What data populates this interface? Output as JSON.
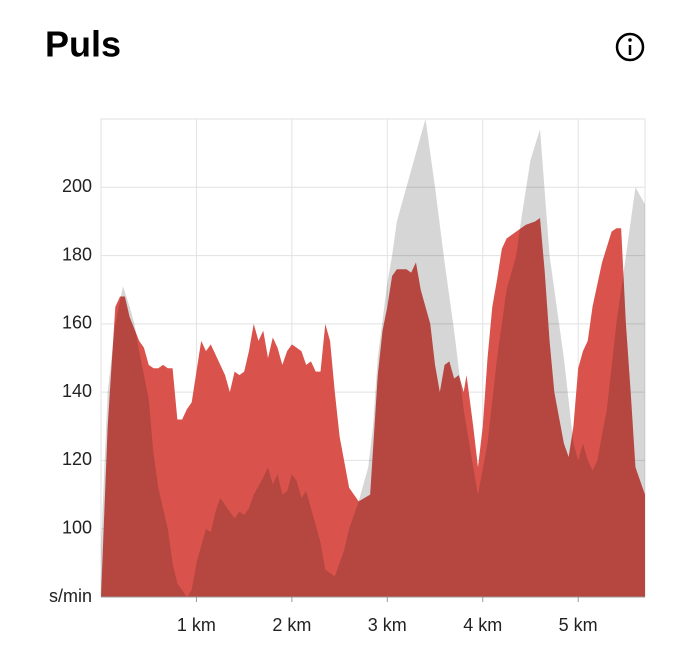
{
  "chart_data": {
    "type": "area",
    "title": "Puls",
    "xlim": [
      0,
      5.7
    ],
    "ylim": [
      80,
      220
    ],
    "xticks": [
      {
        "value": 1,
        "label": "1 km"
      },
      {
        "value": 2,
        "label": "2 km"
      },
      {
        "value": 3,
        "label": "3 km"
      },
      {
        "value": 4,
        "label": "4 km"
      },
      {
        "value": 5,
        "label": "5 km"
      }
    ],
    "yticks": [
      {
        "value": 80,
        "label": "s/min"
      },
      100,
      120,
      140,
      160,
      180,
      200
    ],
    "grid": true,
    "series": [
      {
        "color": "#d9534c",
        "x": [
          0,
          0.07,
          0.15,
          0.2,
          0.25,
          0.3,
          0.4,
          0.45,
          0.5,
          0.55,
          0.6,
          0.65,
          0.7,
          0.75,
          0.8,
          0.85,
          0.9,
          0.95,
          1.0,
          1.05,
          1.1,
          1.15,
          1.25,
          1.3,
          1.35,
          1.4,
          1.45,
          1.5,
          1.55,
          1.6,
          1.65,
          1.7,
          1.75,
          1.8,
          1.85,
          1.9,
          1.95,
          2.0,
          2.05,
          2.1,
          2.15,
          2.2,
          2.25,
          2.3,
          2.35,
          2.4,
          2.45,
          2.5,
          2.6,
          2.7,
          2.82,
          2.9,
          2.95,
          3.0,
          3.05,
          3.1,
          3.2,
          3.25,
          3.3,
          3.35,
          3.45,
          3.5,
          3.55,
          3.6,
          3.65,
          3.7,
          3.75,
          3.8,
          3.83,
          3.9,
          3.95,
          4.0,
          4.05,
          4.1,
          4.15,
          4.2,
          4.25,
          4.35,
          4.45,
          4.55,
          4.6,
          4.65,
          4.7,
          4.75,
          4.85,
          4.9,
          4.95,
          5.0,
          5.05,
          5.1,
          5.15,
          5.25,
          5.35,
          5.4,
          5.45,
          5.5,
          5.55,
          5.6,
          5.7
        ],
        "values": [
          80,
          130,
          165,
          168,
          168,
          162,
          155,
          153,
          148,
          147,
          147,
          148,
          147,
          147,
          132,
          132,
          135,
          137,
          146,
          155,
          152,
          154,
          148,
          145,
          140,
          146,
          145,
          146,
          152,
          160,
          155,
          158,
          150,
          156,
          153,
          148,
          152,
          154,
          153,
          152,
          148,
          149,
          146,
          146,
          160,
          155,
          140,
          127,
          112,
          108,
          110,
          145,
          158,
          165,
          174,
          176,
          176,
          175,
          178,
          170,
          160,
          148,
          140,
          148,
          149,
          144,
          145,
          140,
          145,
          130,
          118,
          130,
          150,
          165,
          173,
          182,
          185,
          187,
          189,
          190,
          191,
          175,
          155,
          140,
          125,
          121,
          130,
          147,
          152,
          155,
          165,
          178,
          187,
          188,
          188,
          160,
          140,
          118,
          110
        ]
      },
      {
        "color": "#d6d6d6",
        "x": [
          0,
          0.07,
          0.15,
          0.23,
          0.3,
          0.35,
          0.4,
          0.5,
          0.55,
          0.6,
          0.7,
          0.75,
          0.8,
          0.9,
          0.95,
          1.0,
          1.1,
          1.15,
          1.2,
          1.25,
          1.3,
          1.4,
          1.45,
          1.5,
          1.55,
          1.6,
          1.7,
          1.75,
          1.8,
          1.85,
          1.9,
          1.95,
          2.0,
          2.05,
          2.1,
          2.15,
          2.2,
          2.3,
          2.35,
          2.45,
          2.55,
          2.6,
          2.7,
          2.8,
          2.85,
          2.9,
          3.0,
          3.05,
          3.1,
          3.2,
          3.3,
          3.4,
          3.5,
          3.6,
          3.7,
          3.8,
          3.9,
          3.95,
          4.05,
          4.15,
          4.25,
          4.35,
          4.4,
          4.5,
          4.6,
          4.7,
          4.85,
          4.95,
          5.0,
          5.05,
          5.1,
          5.15,
          5.2,
          5.3,
          5.4,
          5.5,
          5.6,
          5.7
        ],
        "values": [
          95,
          140,
          160,
          171,
          165,
          160,
          152,
          138,
          122,
          112,
          100,
          90,
          84,
          80,
          82,
          90,
          100,
          99,
          105,
          109,
          107,
          103,
          105,
          104,
          106,
          110,
          115,
          118,
          113,
          116,
          110,
          111,
          116,
          114,
          109,
          111,
          106,
          96,
          88,
          86,
          94,
          100,
          108,
          118,
          130,
          150,
          172,
          180,
          190,
          200,
          210,
          220,
          200,
          178,
          158,
          135,
          118,
          110,
          125,
          150,
          170,
          180,
          190,
          208,
          217,
          180,
          150,
          125,
          120,
          125,
          120,
          117,
          120,
          135,
          160,
          180,
          200,
          195
        ]
      }
    ]
  }
}
